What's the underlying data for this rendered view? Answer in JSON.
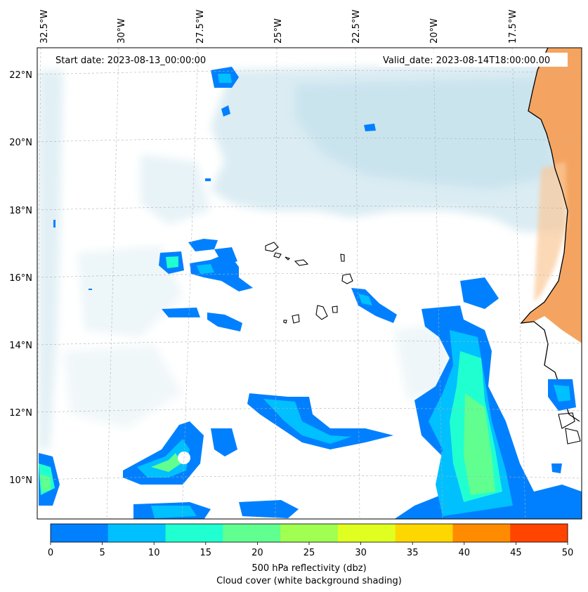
{
  "map": {
    "start_label": "Start date: 2023-08-13_00:00:00",
    "valid_label": "Valid_date: 2023-08-14T18:00:00.00",
    "lon_labels": [
      "32.5°W",
      "30°W",
      "27.5°W",
      "25°W",
      "22.5°W",
      "20°W",
      "17.5°W"
    ],
    "lat_labels": [
      "22°N",
      "20°N",
      "18°N",
      "16°N",
      "14°N",
      "12°N",
      "10°N"
    ],
    "ocean_color": "#ffffff",
    "land_color": "#f4a460",
    "coastline_color": "#000000"
  },
  "colorbar": {
    "ticks": [
      "0",
      "5",
      "10",
      "15",
      "20",
      "25",
      "30",
      "35",
      "40",
      "45",
      "50"
    ],
    "colors": [
      "#0080ff",
      "#00c0ff",
      "#20ffd0",
      "#60ff90",
      "#a0ff50",
      "#e0ff20",
      "#ffd700",
      "#ff8c00",
      "#ff4500"
    ],
    "label_line1": "500 hPa reflectivity (dbz)",
    "label_line2": "Cloud cover (white background shading)"
  }
}
